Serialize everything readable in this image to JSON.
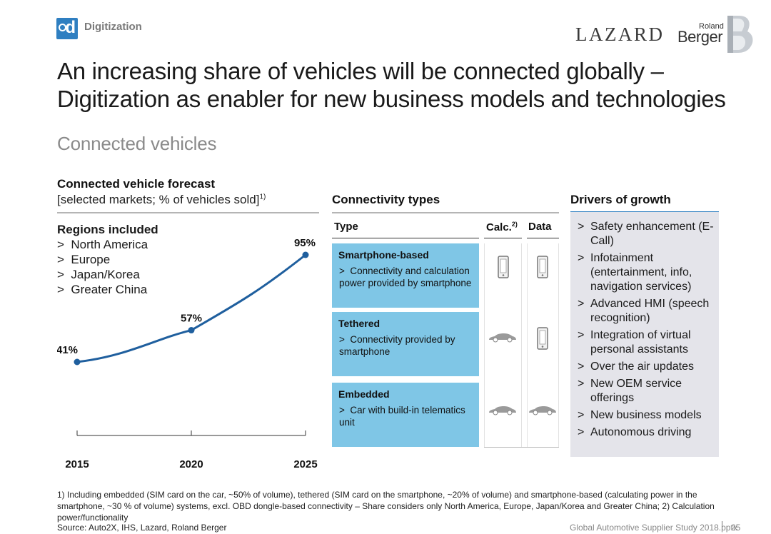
{
  "header": {
    "badge_letter": "d",
    "section_tag": "Digitization",
    "lazard": "LAZARD",
    "rb_small": "Roland",
    "rb_big": "Berger"
  },
  "title": {
    "line1": "An increasing share of vehicles will be connected globally –",
    "line2": "Digitization as enabler for new business models and technologies"
  },
  "subtitle": "Connected vehicles",
  "forecast": {
    "heading": "Connected vehicle forecast",
    "subheading": "[selected markets; % of vehicles sold]",
    "subheading_sup": "1)",
    "regions_title": "Regions included",
    "regions": [
      "North America",
      "Europe",
      "Japan/Korea",
      "Greater China"
    ]
  },
  "chart_data": {
    "type": "line",
    "title": "Connected vehicle forecast",
    "xlabel": "",
    "ylabel": "% of vehicles sold",
    "x": [
      2015,
      2020,
      2025
    ],
    "values": [
      41,
      57,
      95
    ],
    "data_labels": [
      "41%",
      "57%",
      "95%"
    ],
    "tick_labels": [
      "2015",
      "2020",
      "2025"
    ],
    "ylim": [
      30,
      100
    ],
    "color": "#1f5f9e"
  },
  "connectivity": {
    "heading": "Connectivity types",
    "col_type": "Type",
    "col_calc": "Calc.",
    "col_calc_sup": "2)",
    "col_data": "Data",
    "rows": [
      {
        "title": "Smartphone-based",
        "desc": "Connectivity and calculation power provided by smartphone",
        "calc_icon": "smartphone-icon",
        "data_icon": "smartphone-icon"
      },
      {
        "title": "Tethered",
        "desc": "Connectivity provided by smartphone",
        "calc_icon": "car-icon",
        "data_icon": "smartphone-icon"
      },
      {
        "title": "Embedded",
        "desc": "Car with build-in telematics unit",
        "calc_icon": "car-icon",
        "data_icon": "car-icon"
      }
    ]
  },
  "drivers": {
    "heading": "Drivers of growth",
    "items": [
      "Safety enhancement (E-Call)",
      "Infotainment (entertainment, info, navigation services)",
      "Advanced HMI (speech recognition)",
      "Integration of virtual personal assistants",
      "Over the air updates",
      "New OEM service offerings",
      "New business models",
      "Autonomous driving"
    ]
  },
  "footnote": "1) Including embedded (SIM card on the car, ~50% of volume), tethered (SIM card on the smartphone, ~20% of volume) and smartphone-based (calculating power in the smartphone, ~30 % of volume) systems, excl. OBD dongle-based connectivity – Share considers only North America, Europe, Japan/Korea and Greater China; 2) Calculation power/functionality",
  "footer": {
    "source": "Source: Auto2X, IHS, Lazard, Roland Berger",
    "study": "Global Automotive Supplier Study 2018.pptx",
    "page": "25"
  },
  "colors": {
    "accent_blue": "#2d7fc1",
    "cell_blue": "#7fc6e6",
    "line": "#1f5f9e",
    "drivers_bg": "#e4e4ea"
  }
}
